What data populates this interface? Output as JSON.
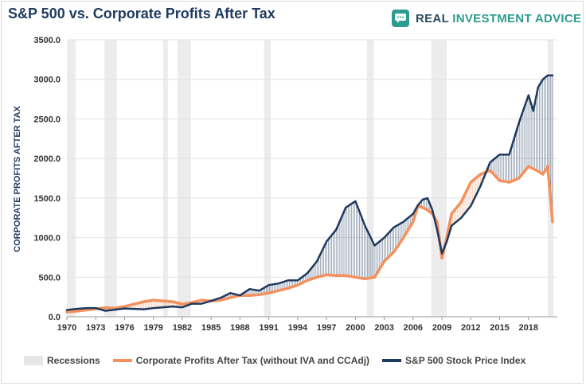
{
  "header": {
    "title": "S&P 500 vs. Corporate Profits After Tax",
    "brand_part1": "REAL ",
    "brand_part2": "INVESTMENT ADVICE"
  },
  "chart_data": {
    "type": "line",
    "ylabel": "CORPORATE PROFITS AFTER TAX",
    "xlim": [
      1970,
      2021
    ],
    "ylim": [
      0,
      3500
    ],
    "x_ticks": [
      "1970",
      "1973",
      "1976",
      "1979",
      "1982",
      "1985",
      "1988",
      "1991",
      "1994",
      "1997",
      "2000",
      "2003",
      "2006",
      "2009",
      "2012",
      "2015",
      "2018"
    ],
    "y_ticks": [
      "0.0",
      "500.0",
      "1000.0",
      "1500.0",
      "2000.0",
      "2500.0",
      "3000.0",
      "3500.0"
    ],
    "legend": {
      "position": "bottom"
    },
    "recessions": [
      [
        1970.0,
        1970.9
      ],
      [
        1973.9,
        1975.2
      ],
      [
        1980.0,
        1980.5
      ],
      [
        1981.5,
        1982.9
      ],
      [
        1990.5,
        1991.2
      ],
      [
        2001.2,
        2001.9
      ],
      [
        2007.9,
        2009.5
      ],
      [
        2020.0,
        2020.6
      ]
    ],
    "series": [
      {
        "name": "Corporate Profits After Tax (without IVA and CCAdj)",
        "color": "#f4915e",
        "x": [
          1970,
          1971,
          1972,
          1973,
          1974,
          1975,
          1976,
          1977,
          1978,
          1979,
          1980,
          1981,
          1982,
          1983,
          1984,
          1985,
          1986,
          1987,
          1988,
          1989,
          1990,
          1991,
          1992,
          1993,
          1994,
          1995,
          1996,
          1997,
          1998,
          1999,
          2000,
          2001,
          2002,
          2003,
          2004,
          2005,
          2006,
          2006.5,
          2007,
          2007.5,
          2008,
          2008.5,
          2009,
          2009.5,
          2010,
          2011,
          2012,
          2013,
          2014,
          2015,
          2016,
          2017,
          2018,
          2019,
          2019.5,
          2020,
          2020.5
        ],
        "values": [
          60,
          70,
          85,
          100,
          115,
          110,
          130,
          160,
          190,
          210,
          200,
          190,
          160,
          180,
          210,
          200,
          210,
          240,
          270,
          270,
          280,
          300,
          330,
          360,
          400,
          460,
          500,
          530,
          520,
          520,
          500,
          480,
          500,
          700,
          820,
          1000,
          1200,
          1400,
          1380,
          1350,
          1300,
          1200,
          740,
          1000,
          1300,
          1450,
          1700,
          1800,
          1850,
          1720,
          1700,
          1750,
          1900,
          1840,
          1800,
          1900,
          1200
        ]
      },
      {
        "name": "S&P 500 Stock Price Index",
        "color": "#1f3a5f",
        "x": [
          1970,
          1971,
          1972,
          1973,
          1974,
          1975,
          1976,
          1977,
          1978,
          1979,
          1980,
          1981,
          1982,
          1983,
          1984,
          1985,
          1986,
          1987,
          1988,
          1989,
          1990,
          1991,
          1992,
          1993,
          1994,
          1995,
          1996,
          1997,
          1998,
          1999,
          2000,
          2001,
          2002,
          2003,
          2004,
          2005,
          2006,
          2006.5,
          2007,
          2007.5,
          2008,
          2008.5,
          2009,
          2009.5,
          2010,
          2011,
          2012,
          2013,
          2014,
          2015,
          2016,
          2017,
          2018,
          2018.5,
          2019,
          2019.5,
          2020,
          2020.5
        ],
        "values": [
          85,
          100,
          110,
          110,
          75,
          90,
          105,
          100,
          95,
          110,
          120,
          130,
          120,
          165,
          165,
          200,
          240,
          300,
          270,
          350,
          330,
          400,
          420,
          460,
          460,
          550,
          700,
          950,
          1100,
          1380,
          1460,
          1150,
          900,
          1000,
          1130,
          1200,
          1300,
          1410,
          1480,
          1500,
          1350,
          1100,
          800,
          950,
          1150,
          1250,
          1400,
          1650,
          1950,
          2050,
          2050,
          2450,
          2800,
          2600,
          2900,
          3000,
          3050,
          3050
        ]
      }
    ]
  },
  "legend": {
    "recessions": "Recessions",
    "profits": "Corporate Profits After Tax (without IVA and CCAdj)",
    "sp500": "S&P 500 Stock Price Index"
  }
}
